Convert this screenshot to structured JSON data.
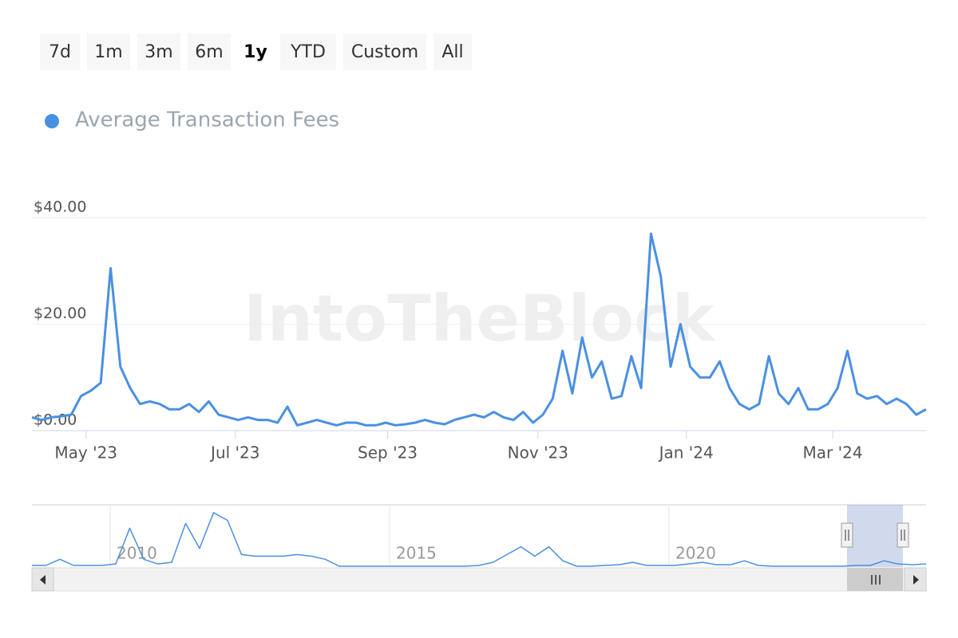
{
  "range_buttons": [
    "7d",
    "1m",
    "3m",
    "6m",
    "1y",
    "YTD",
    "Custom",
    "All"
  ],
  "active_button": "1y",
  "chart_data": [
    {
      "type": "line",
      "watermark": "IntoTheBlock",
      "series": [
        {
          "name": "Average Transaction Fees",
          "color": "#4a90e2",
          "values": [
            2.5,
            2,
            2.5,
            2.7,
            3,
            6.5,
            7.5,
            9,
            30.5,
            12,
            8,
            5,
            5.5,
            5,
            4,
            4,
            5,
            3.5,
            5.5,
            3,
            2.5,
            2,
            2.5,
            2,
            2,
            1.5,
            4.5,
            1,
            1.5,
            2,
            1.5,
            1,
            1.5,
            1.5,
            1,
            1,
            1.5,
            1,
            1.2,
            1.5,
            2,
            1.5,
            1.2,
            2,
            2.5,
            3,
            2.5,
            3.5,
            2.5,
            2,
            3.5,
            1.5,
            3,
            6,
            15,
            7,
            17.5,
            10,
            13,
            6,
            6.5,
            14,
            8,
            37,
            29,
            12,
            20,
            12,
            10,
            10,
            13,
            8,
            5,
            4,
            5,
            14,
            7,
            5,
            8,
            4,
            4,
            5,
            8,
            15,
            7,
            6,
            6.5,
            5,
            6,
            5,
            3,
            4
          ]
        }
      ],
      "xlim": [
        0,
        91
      ],
      "xticks": [
        {
          "value": 5.5,
          "label": "May '23"
        },
        {
          "value": 20.7,
          "label": "Jul '23"
        },
        {
          "value": 36.2,
          "label": "Sep '23"
        },
        {
          "value": 51.5,
          "label": "Nov '23"
        },
        {
          "value": 66.6,
          "label": "Jan '24"
        },
        {
          "value": 81.5,
          "label": "Mar '24"
        }
      ],
      "ylim": [
        0,
        40
      ],
      "yticks": [
        {
          "value": 0,
          "label": "$0.00"
        },
        {
          "value": 20,
          "label": "$20.00"
        },
        {
          "value": 40,
          "label": "$40.00"
        }
      ],
      "grid": true
    },
    {
      "type": "line",
      "series": [
        {
          "color": "#4a90e2",
          "values": [
            1,
            1,
            5,
            1,
            1,
            1,
            2,
            25,
            5,
            2,
            3,
            28,
            12,
            35,
            30,
            8,
            7,
            7,
            7,
            8,
            7,
            5,
            0.5,
            0.5,
            0.5,
            0.5,
            0.5,
            0.5,
            0.5,
            0.5,
            0.5,
            0.5,
            1,
            3,
            8,
            13,
            7,
            13,
            4,
            0.5,
            0.5,
            1,
            1.5,
            3,
            1,
            1,
            1,
            2,
            3,
            1.5,
            1.5,
            4,
            1,
            0.5,
            0.5,
            0.5,
            0.5,
            0.5,
            0.5,
            1,
            1,
            4,
            2,
            1.5,
            2
          ]
        }
      ],
      "xlim": [
        0,
        64
      ],
      "xticks": [
        {
          "value": 5.6,
          "label": "2010"
        },
        {
          "value": 25.6,
          "label": "2015"
        },
        {
          "value": 45.6,
          "label": "2020"
        }
      ],
      "ylim": [
        0,
        40
      ],
      "grid": true
    }
  ]
}
